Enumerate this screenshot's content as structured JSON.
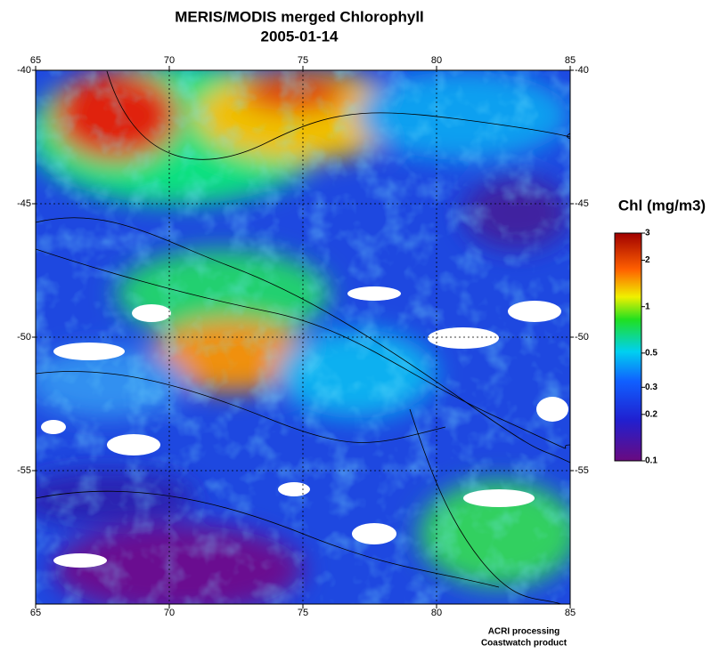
{
  "title": "MERIS/MODIS merged Chlorophyll",
  "subtitle": "2005-01-14",
  "map": {
    "xlim": [
      65,
      85
    ],
    "ylim": [
      -40,
      -60
    ],
    "xticks": [
      65,
      70,
      75,
      80,
      85
    ],
    "yticks": [
      -40,
      -45,
      -50,
      -55
    ],
    "grid": true
  },
  "colorbar": {
    "title": "Chl (mg/m3)",
    "lim": [
      0.1,
      3
    ],
    "scale": "log",
    "ticks": [
      3,
      2,
      1,
      0.5,
      0.3,
      0.2,
      0.1
    ]
  },
  "footer": [
    "ACRI processing",
    "Coastwatch product"
  ]
}
